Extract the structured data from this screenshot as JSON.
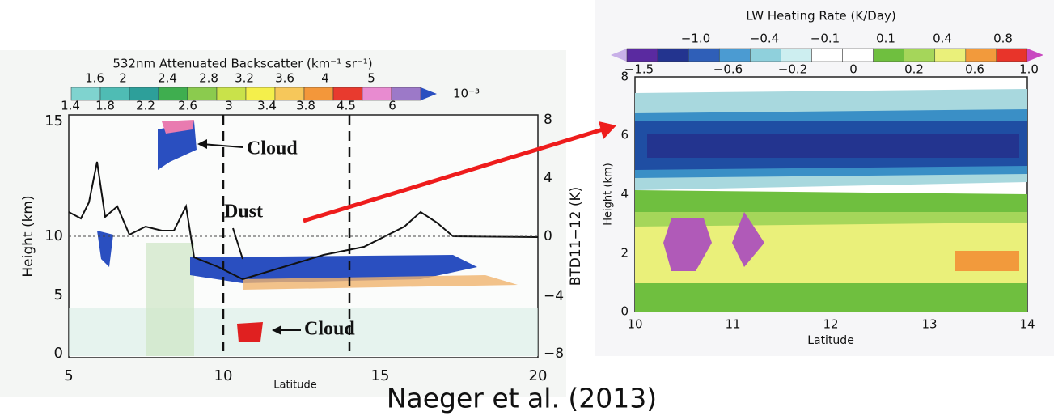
{
  "left_panel": {
    "colorbar_title": "532nm Attenuated Backscatter (km⁻¹ sr⁻¹)",
    "colorbar_upper_labels": [
      "1.6",
      "2",
      "2.4",
      "2.8",
      "3.2",
      "3.6",
      "4",
      "5"
    ],
    "colorbar_lower_labels": [
      "1.4",
      "1.8",
      "2.2",
      "2.6",
      "3",
      "3.4",
      "3.8",
      "4.5",
      "6"
    ],
    "colorbar_multiplier": "10⁻³",
    "y_label": "Height (km)",
    "y2_label": "BTD11−12 (K)",
    "x_label": "Latitude",
    "yticks": [
      "0",
      "5",
      "10",
      "15"
    ],
    "y2ticks": [
      "8",
      "4",
      "0",
      "−4",
      "−8"
    ],
    "xticks": [
      "5",
      "10",
      "15",
      "20"
    ],
    "annotations": [
      "Cloud",
      "Dust",
      "Cloud"
    ]
  },
  "right_panel": {
    "colorbar_title": "LW Heating Rate (K/Day)",
    "colorbar_upper_labels": [
      "−1.0",
      "−0.4",
      "−0.1",
      "0.1",
      "0.4",
      "0.8"
    ],
    "colorbar_lower_labels": [
      "−1.5",
      "−0.6",
      "−0.2",
      "0",
      "0.2",
      "0.6",
      "1.0"
    ],
    "y_label": "Height (km)",
    "x_label": "Latitude",
    "yticks": [
      "0",
      "2",
      "4",
      "6",
      "8"
    ],
    "xticks": [
      "10",
      "11",
      "12",
      "13",
      "14"
    ]
  },
  "citation": "Naeger et al. (2013)"
}
